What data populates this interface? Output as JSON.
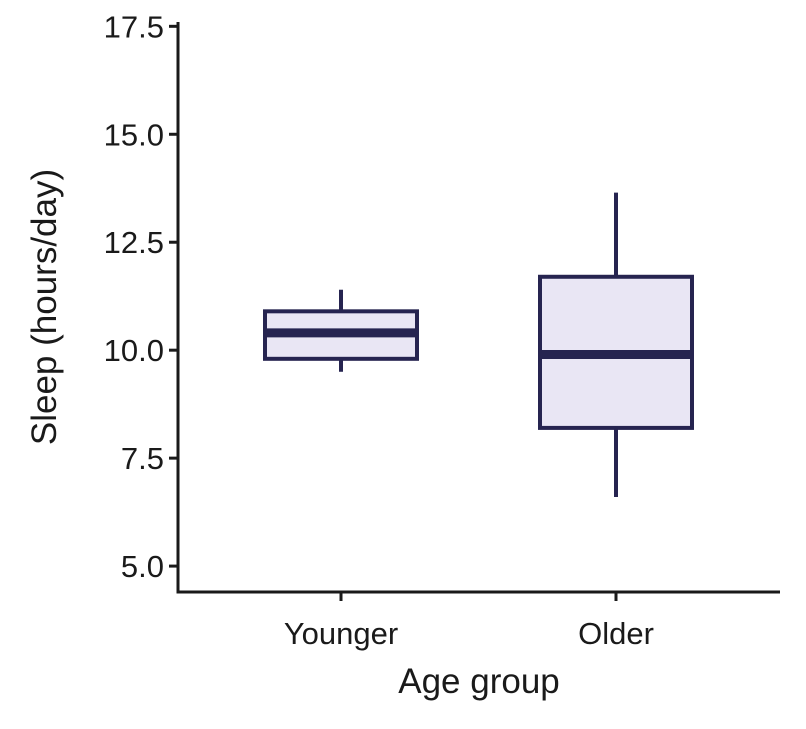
{
  "chart_data": {
    "type": "boxplot",
    "xlabel": "Age group",
    "ylabel": "Sleep (hours/day)",
    "ylim": [
      4.4,
      17.6
    ],
    "yticks": [
      5.0,
      7.5,
      10.0,
      12.5,
      15.0,
      17.5
    ],
    "ytick_labels": [
      "5.0",
      "7.5",
      "10.0",
      "12.5",
      "15.0",
      "17.5"
    ],
    "categories": [
      "Younger",
      "Older"
    ],
    "boxes": [
      {
        "category": "Younger",
        "whisker_low": 9.5,
        "q1": 9.8,
        "median": 10.4,
        "q3": 10.9,
        "whisker_high": 11.4
      },
      {
        "category": "Older",
        "whisker_low": 6.6,
        "q1": 8.2,
        "median": 9.9,
        "q3": 11.7,
        "whisker_high": 13.65
      }
    ],
    "colors": {
      "box_fill": "#e9e6f4",
      "box_stroke": "#262450",
      "axis": "#1a1a1a"
    },
    "grid": false,
    "legend": "none"
  }
}
